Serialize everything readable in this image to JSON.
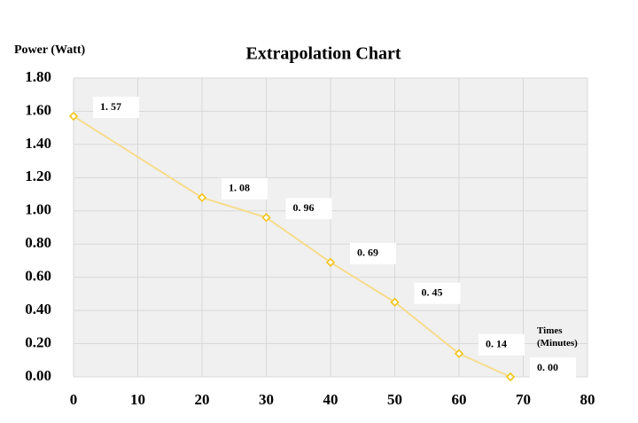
{
  "chart_data": {
    "type": "line",
    "title": "Extrapolation Chart",
    "y_label": "Power (Watt)",
    "x_label": "Times (Minutes)",
    "x": [
      0,
      20,
      30,
      40,
      50,
      60,
      68
    ],
    "series": [
      {
        "color": "#f2c418",
        "values": [
          1.57,
          1.08,
          0.96,
          0.69,
          0.45,
          0.14,
          0.0
        ],
        "value_labels": [
          "1. 57",
          "1. 08",
          "0. 96",
          "0. 69",
          "0. 45",
          "0. 14",
          "0. 00"
        ]
      }
    ],
    "xlim": [
      0,
      80
    ],
    "xticks": [
      0,
      10,
      20,
      30,
      40,
      50,
      60,
      70,
      80
    ],
    "ylim": [
      0,
      1.8
    ],
    "yticks": [
      {
        "value": 0,
        "label": "0.00"
      },
      {
        "value": 0.2,
        "label": "0.20"
      },
      {
        "value": 0.4,
        "label": "0.40"
      },
      {
        "value": 0.6,
        "label": "0.60"
      },
      {
        "value": 0.8,
        "label": "0.80"
      },
      {
        "value": 1.0,
        "label": "1.00"
      },
      {
        "value": 1.2,
        "label": "1.20"
      },
      {
        "value": 1.4,
        "label": "1.40"
      },
      {
        "value": 1.6,
        "label": "1.60"
      },
      {
        "value": 1.8,
        "label": "1.80"
      }
    ],
    "grid": true
  }
}
